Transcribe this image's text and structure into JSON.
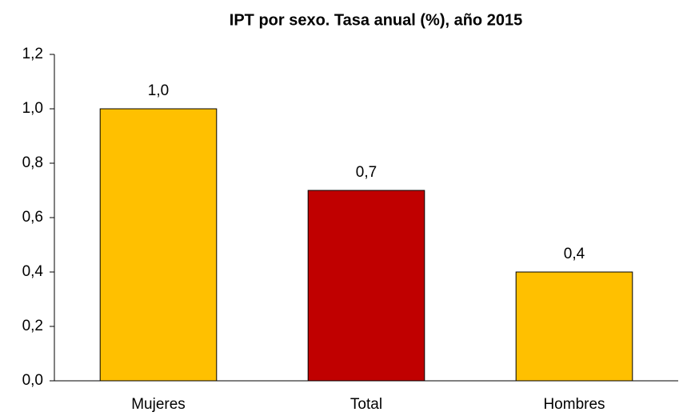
{
  "chart_data": {
    "type": "bar",
    "title": "IPT por sexo. Tasa anual (%),  año 2015",
    "categories": [
      "Mujeres",
      "Total",
      "Hombres"
    ],
    "values": [
      1.0,
      0.7,
      0.4
    ],
    "value_labels": [
      "1,0",
      "0,7",
      "0,4"
    ],
    "colors": [
      "#ffc000",
      "#c00000",
      "#ffc000"
    ],
    "ylim": [
      0,
      1.2
    ],
    "yticks": [
      {
        "value": 0,
        "label": "0,0"
      },
      {
        "value": 0.2,
        "label": "0,2"
      },
      {
        "value": 0.4,
        "label": "0,4"
      },
      {
        "value": 0.6,
        "label": "0,6"
      },
      {
        "value": 0.8,
        "label": "0,8"
      },
      {
        "value": 1.0,
        "label": "1,0"
      },
      {
        "value": 1.2,
        "label": "1,2"
      }
    ],
    "grid": false
  }
}
